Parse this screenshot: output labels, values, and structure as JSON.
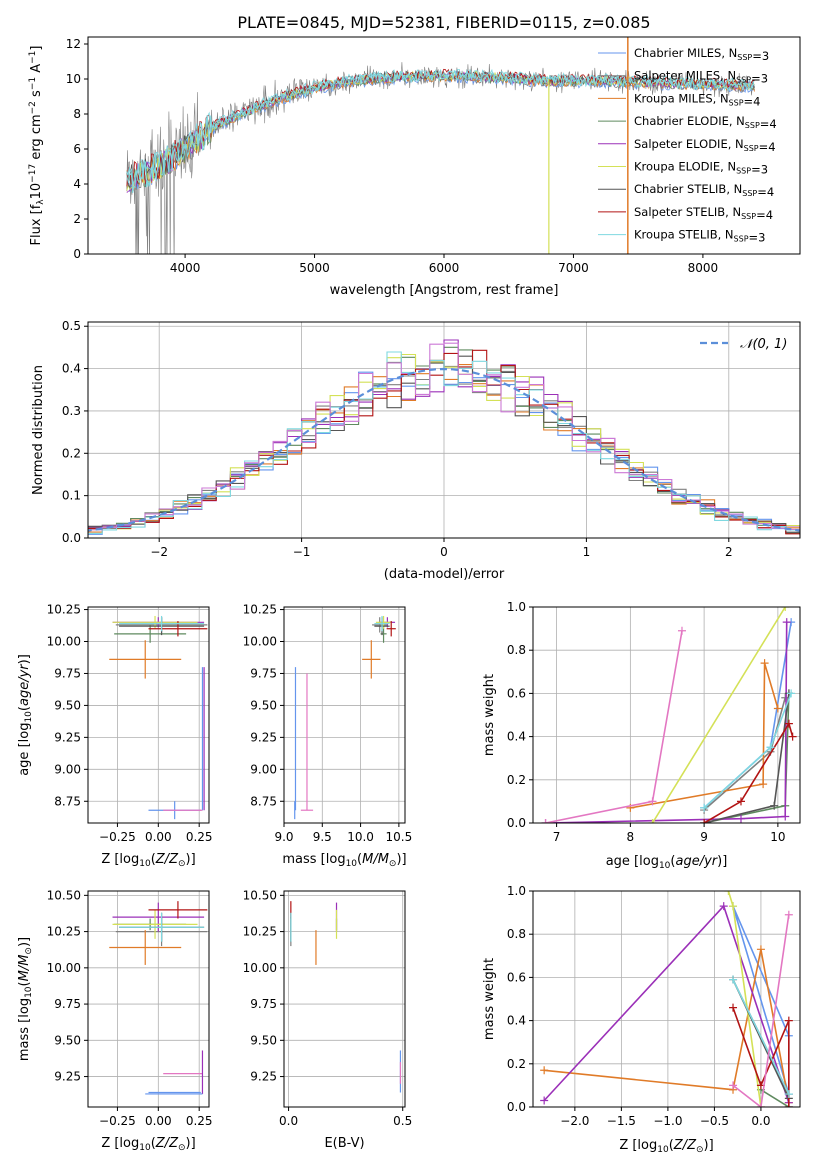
{
  "figure_title": "PLATE=0845, MJD=52381, FIBERID=0115, z=0.085",
  "legend_labels": [
    "Chabrier MILES, N<sub>SSP</sub>=3",
    "Salpeter MILES, N<sub>SSP</sub>=3",
    "Kroupa MILES, N<sub>SSP</sub>=4",
    "Chabrier ELODIE, N<sub>SSP</sub>=4",
    "Salpeter ELODIE, N<sub>SSP</sub>=4",
    "Kroupa ELODIE, N<sub>SSP</sub>=3",
    "Chabrier STELIB, N<sub>SSP</sub>=4",
    "Salpeter STELIB, N<sub>SSP</sub>=4",
    "Kroupa STELIB, N<sub>SSP</sub>=3"
  ],
  "colors": [
    "#6495ed",
    "#808080",
    "#e07b28",
    "#5f8a5f",
    "#9b30b8",
    "#d4e157",
    "#555555",
    "#b21414",
    "#7fd8e0"
  ],
  "chart_data": [
    {
      "type": "line",
      "id": "spectrum",
      "title": "PLATE=0845, MJD=52381, FIBERID=0115, z=0.085",
      "xlabel": "wavelength [Angstrom, rest frame]",
      "ylabel": "Flux [f_λ 10^-17 erg cm^-2 s^-1 A^-1]",
      "xlim": [
        3250,
        8750
      ],
      "ylim": [
        0,
        12.4
      ],
      "xticks": [
        4000,
        5000,
        6000,
        7000,
        8000
      ],
      "yticks": [
        0,
        2,
        4,
        6,
        8,
        10,
        12
      ],
      "grid": false,
      "legend_position": "right",
      "observed_flux_continuum": {
        "x": [
          3550,
          3800,
          4000,
          4200,
          4400,
          4700,
          5000,
          5300,
          5600,
          6000,
          6400,
          6800,
          7200,
          7600,
          8000,
          8400
        ],
        "y": [
          4.2,
          5.0,
          6.0,
          7.2,
          7.9,
          8.8,
          9.5,
          9.9,
          10.1,
          10.2,
          10.1,
          9.9,
          9.9,
          9.8,
          9.7,
          9.6
        ]
      }
    },
    {
      "type": "bar",
      "id": "residual_hist",
      "xlabel": "(data-model)/error",
      "ylabel": "Normed distribution",
      "xlim": [
        -2.5,
        2.5
      ],
      "ylim": [
        0,
        0.51
      ],
      "xticks": [
        -2,
        -1,
        0,
        1,
        2
      ],
      "yticks": [
        0.0,
        0.1,
        0.2,
        0.3,
        0.4,
        0.5
      ],
      "grid": true,
      "legend_position": "top-right",
      "reference_curve": {
        "name": "𝒩(0, 1)",
        "style": "dashed",
        "color": "#5b8fd9"
      },
      "bin_width": 0.1
    },
    {
      "type": "scatter",
      "id": "age_vs_Z",
      "xlabel": "Z [log10(Z/Z⊙)]",
      "ylabel": "age [log10(age/yr)]",
      "xlim": [
        -0.43,
        0.31
      ],
      "ylim": [
        8.58,
        10.27
      ],
      "xticks": [
        -0.25,
        0.0,
        0.25
      ],
      "yticks": [
        8.75,
        9.0,
        9.25,
        9.5,
        9.75,
        10.0,
        10.25
      ],
      "grid": true
    },
    {
      "type": "scatter",
      "id": "age_vs_mass",
      "xlabel": "mass [log10(M/M⊙)]",
      "ylabel": "",
      "xlim": [
        9.0,
        10.58
      ],
      "ylim": [
        8.58,
        10.27
      ],
      "xticks": [
        9.0,
        9.5,
        10.0,
        10.5
      ],
      "yticks": [
        8.75,
        9.0,
        9.25,
        9.5,
        9.75,
        10.0,
        10.25
      ],
      "grid": true
    },
    {
      "type": "line",
      "id": "weight_vs_age",
      "xlabel": "age [log10(age/yr)]",
      "ylabel": "mass weight",
      "xlim": [
        6.68,
        10.3
      ],
      "ylim": [
        0,
        1.0
      ],
      "xticks": [
        7,
        8,
        9,
        10
      ],
      "yticks": [
        0.0,
        0.2,
        0.4,
        0.6,
        0.8,
        1.0
      ],
      "grid": true
    },
    {
      "type": "scatter",
      "id": "mass_vs_Z",
      "xlabel": "Z [log10(Z/Z⊙)]",
      "ylabel": "mass [log10(M/M⊙)]",
      "xlim": [
        -0.43,
        0.31
      ],
      "ylim": [
        9.04,
        10.53
      ],
      "xticks": [
        -0.25,
        0.0,
        0.25
      ],
      "yticks": [
        9.25,
        9.5,
        9.75,
        10.0,
        10.25,
        10.5
      ],
      "grid": true
    },
    {
      "type": "scatter",
      "id": "mass_vs_ebv",
      "xlabel": "E(B-V)",
      "ylabel": "",
      "xlim": [
        -0.02,
        0.51
      ],
      "ylim": [
        9.04,
        10.53
      ],
      "xticks": [
        0.0,
        0.5
      ],
      "yticks": [
        9.25,
        9.5,
        9.75,
        10.0,
        10.25,
        10.5
      ],
      "grid": true
    },
    {
      "type": "line",
      "id": "weight_vs_Z",
      "xlabel": "Z [log10(Z/Z⊙)]",
      "ylabel": "mass weight",
      "xlim": [
        -2.45,
        0.42
      ],
      "ylim": [
        0,
        1.0
      ],
      "xticks": [
        -2.0,
        -1.5,
        -1.0,
        -0.5,
        0.0
      ],
      "yticks": [
        0.0,
        0.2,
        0.4,
        0.6,
        0.8,
        1.0
      ],
      "grid": true
    }
  ],
  "models": [
    {
      "Z": 0.1,
      "Zerr": 0.16,
      "age": 8.68,
      "ageerr": 0.0,
      "mass": 9.14,
      "masserr": 0.0,
      "ebv": 0.49,
      "wa": [
        [
          9.0,
          0.07
        ],
        [
          9.9,
          0.35
        ],
        [
          10.18,
          0.93
        ]
      ],
      "wz": [
        [
          0.3,
          0.0
        ],
        [
          0.3,
          0.33
        ],
        [
          -0.3,
          0.93
        ],
        [
          0.3,
          0.06
        ]
      ],
      "age_vbar": {
        "x": 0.27,
        "y1": 8.68,
        "y2": 9.8
      },
      "mass_vbar": {
        "x": 9.15,
        "y1": 8.68,
        "y2": 9.8
      }
    },
    {
      "Z": 0.02,
      "Zerr": 0.28,
      "age": 10.13,
      "ageerr": 0.06,
      "mass": 10.25,
      "masserr": 0.1,
      "ebv": 0.01,
      "wa": [
        [
          9.0,
          0.06
        ],
        [
          9.9,
          0.33
        ],
        [
          10.1,
          0.58
        ]
      ],
      "wz": [
        [
          -0.3,
          0.59
        ],
        [
          0.3,
          0.06
        ]
      ],
      "age_vbar": null,
      "mass_vbar": null
    },
    {
      "Z": -0.08,
      "Zerr": 0.22,
      "age": 9.86,
      "ageerr": 0.15,
      "mass": 10.14,
      "masserr": 0.12,
      "ebv": 0.12,
      "wa": [
        [
          8.0,
          0.07
        ],
        [
          9.8,
          0.18
        ],
        [
          9.82,
          0.74
        ],
        [
          10.0,
          0.53
        ]
      ],
      "wz": [
        [
          -2.33,
          0.17
        ],
        [
          -0.3,
          0.08
        ],
        [
          0.0,
          0.73
        ],
        [
          0.3,
          0.02
        ]
      ],
      "age_vbar": null,
      "mass_vbar": null
    },
    {
      "Z": -0.05,
      "Zerr": 0.22,
      "age": 10.06,
      "ageerr": 0.07,
      "mass": 10.3,
      "masserr": 0.04,
      "ebv": 0.21,
      "wa": [
        [
          9.0,
          0.0
        ],
        [
          10.1,
          0.08
        ],
        [
          10.15,
          0.6
        ]
      ],
      "wz": [
        [
          0.0,
          0.08
        ],
        [
          0.3,
          0.0
        ]
      ],
      "age_vbar": null,
      "mass_vbar": null
    },
    {
      "Z": 0.0,
      "Zerr": 0.28,
      "age": 10.15,
      "ageerr": 0.04,
      "mass": 10.35,
      "masserr": 0.1,
      "ebv": 0.21,
      "wa": [
        [
          6.85,
          0.0
        ],
        [
          9.5,
          0.02
        ],
        [
          10.1,
          0.03
        ],
        [
          10.12,
          0.93
        ]
      ],
      "wz": [
        [
          -2.33,
          0.03
        ],
        [
          -0.4,
          0.93
        ],
        [
          0.3,
          0.02
        ]
      ],
      "age_vbar": {
        "x": 0.28,
        "y1": 8.68,
        "y2": 9.8
      },
      "mass_vbar": null
    },
    {
      "Z": -0.02,
      "Zerr": 0.26,
      "age": 10.15,
      "ageerr": 0.05,
      "mass": 10.3,
      "masserr": 0.1,
      "ebv": 0.21,
      "wa": [
        [
          8.3,
          0.0
        ],
        [
          10.1,
          1.0
        ]
      ],
      "wz": [
        [
          -0.35,
          1.0
        ],
        [
          -0.3,
          0.93
        ],
        [
          0.0,
          0.0
        ]
      ],
      "age_vbar": null,
      "mass_vbar": null
    },
    {
      "Z": 0.02,
      "Zerr": 0.26,
      "age": 10.12,
      "ageerr": 0.07,
      "mass": 10.28,
      "masserr": 0.1,
      "ebv": 0.01,
      "wa": [
        [
          9.0,
          0.0
        ],
        [
          9.95,
          0.08
        ],
        [
          10.15,
          0.6
        ]
      ],
      "wz": [
        [
          -0.3,
          0.59
        ],
        [
          0.3,
          0.04
        ]
      ],
      "age_vbar": null,
      "mass_vbar": null
    },
    {
      "Z": 0.12,
      "Zerr": 0.18,
      "age": 10.1,
      "ageerr": 0.06,
      "mass": 10.4,
      "masserr": 0.06,
      "ebv": 0.01,
      "wa": [
        [
          9.0,
          0.0
        ],
        [
          9.5,
          0.1
        ],
        [
          10.15,
          0.46
        ],
        [
          10.2,
          0.4
        ]
      ],
      "wz": [
        [
          -0.3,
          0.46
        ],
        [
          0.0,
          0.1
        ],
        [
          0.3,
          0.4
        ],
        [
          0.3,
          0.0
        ]
      ],
      "age_vbar": null,
      "mass_vbar": null
    },
    {
      "Z": 0.02,
      "Zerr": 0.26,
      "age": 10.14,
      "ageerr": 0.06,
      "mass": 10.28,
      "masserr": 0.1,
      "ebv": 0.01,
      "wa": [
        [
          9.0,
          0.07
        ],
        [
          9.9,
          0.35
        ],
        [
          10.18,
          0.6
        ]
      ],
      "wz": [
        [
          -0.3,
          0.59
        ],
        [
          0.3,
          0.06
        ]
      ],
      "age_vbar": null,
      "mass_vbar": null
    }
  ],
  "extra_markers": {
    "pink_age_Z": {
      "Z": 0.15,
      "Zerr": 0.12,
      "age": 8.68,
      "color": "#e377c2"
    },
    "pink_age_mass": {
      "mass": 9.3,
      "masserr": 0.08,
      "age": 8.68,
      "color": "#e377c2"
    },
    "pink_mass_Z": {
      "Z": 0.15,
      "Zerr": 0.12,
      "mass": 9.27,
      "color": "#e377c2"
    },
    "pink_weight_age": [
      [
        6.85,
        0.0
      ],
      [
        8.3,
        0.1
      ],
      [
        8.7,
        0.89
      ]
    ],
    "pink_weight_Z": [
      [
        -0.3,
        0.1
      ],
      [
        0.0,
        0.0
      ],
      [
        0.3,
        0.89
      ]
    ]
  }
}
